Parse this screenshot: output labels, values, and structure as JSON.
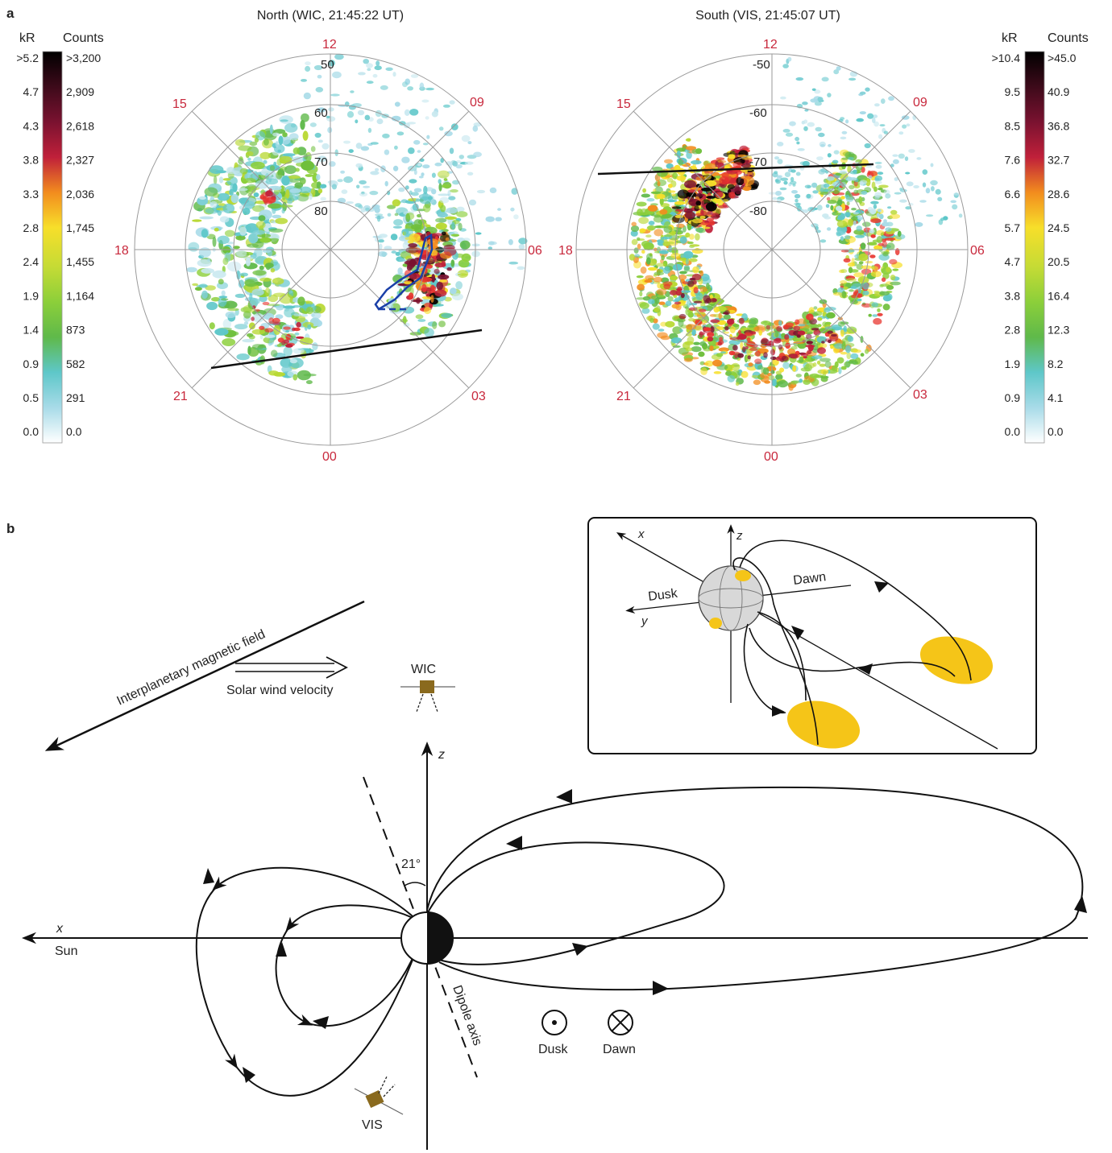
{
  "panel_a": {
    "label": "a",
    "north": {
      "title": "North (WIC, 21:45:22 UT)",
      "mlt": {
        "m12": "12",
        "m09": "09",
        "m06": "06",
        "m03": "03",
        "m00": "00",
        "m21": "21",
        "m18": "18",
        "m15": "15"
      },
      "lat": {
        "l50": "50",
        "l60": "60",
        "l70": "70",
        "l80": "80"
      }
    },
    "south": {
      "title": "South (VIS, 21:45:07 UT)",
      "mlt": {
        "m12": "12",
        "m09": "09",
        "m06": "06",
        "m03": "03",
        "m00": "00",
        "m21": "21",
        "m18": "18",
        "m15": "15"
      },
      "lat": {
        "l50": "-50",
        "l60": "-60",
        "l70": "-70",
        "l80": "-80"
      }
    },
    "left_scale": {
      "kr_header": "kR",
      "counts_header": "Counts",
      "kr": [
        ">5.2",
        "4.7",
        "4.3",
        "3.8",
        "3.3",
        "2.8",
        "2.4",
        "1.9",
        "1.4",
        "0.9",
        "0.5",
        "0.0"
      ],
      "counts": [
        ">3,200",
        "2,909",
        "2,618",
        "2,327",
        "2,036",
        "1,745",
        "1,455",
        "1,164",
        "873",
        "582",
        "291",
        "0.0"
      ]
    },
    "right_scale": {
      "kr_header": "kR",
      "counts_header": "Counts",
      "kr": [
        ">10.4",
        "9.5",
        "8.5",
        "7.6",
        "6.6",
        "5.7",
        "4.7",
        "3.8",
        "2.8",
        "1.9",
        "0.9",
        "0.0"
      ],
      "counts": [
        ">45.0",
        "40.9",
        "36.8",
        "32.7",
        "28.6",
        "24.5",
        "20.5",
        "16.4",
        "12.3",
        "8.2",
        "4.1",
        "0.0"
      ]
    },
    "colors": {
      "scale": [
        "#000000",
        "#3d0a1a",
        "#7a1230",
        "#c0203a",
        "#e8342e",
        "#f28c1e",
        "#f7df2a",
        "#b8d832",
        "#6fbf3c",
        "#5ec7c9",
        "#a8dbe8",
        "#ffffff"
      ]
    }
  },
  "panel_b": {
    "label": "b",
    "imf_label": "Interplanetary magnetic field",
    "sw_label": "Solar wind velocity",
    "wic_label": "WIC",
    "vis_label": "VIS",
    "z_label": "z",
    "x_label": "x",
    "sun_label": "Sun",
    "angle_label": "21°",
    "dipole_label": "Dipole axis",
    "dusk_label": "Dusk",
    "dawn_label": "Dawn",
    "inset": {
      "x_label": "x",
      "y_label": "y",
      "z_label": "z",
      "dusk_label": "Dusk",
      "dawn_label": "Dawn"
    },
    "colors": {
      "spot": "#f5c518",
      "satellite": "#8a6a1e"
    }
  }
}
